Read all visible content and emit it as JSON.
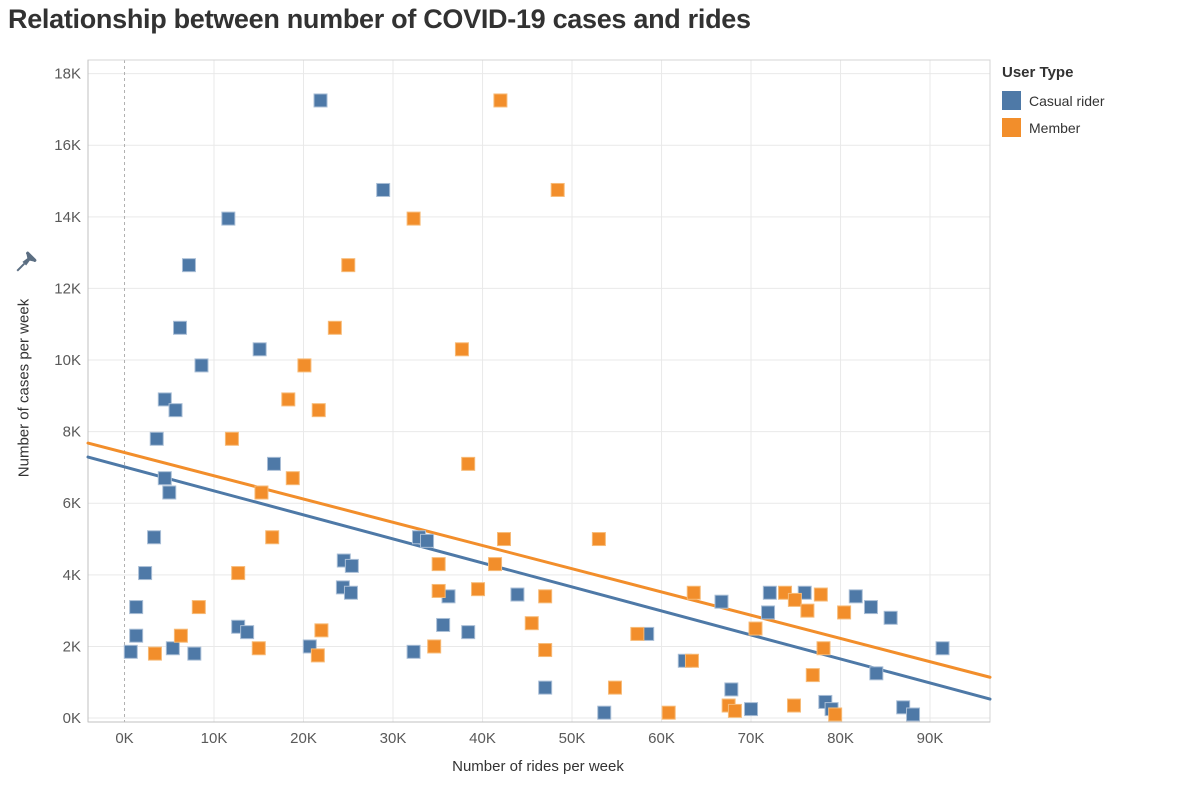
{
  "title": "Relationship between number of COVID-19 cases and rides",
  "x_axis": {
    "title": "Number of rides per week",
    "tick_labels": [
      "0K",
      "10K",
      "20K",
      "30K",
      "40K",
      "50K",
      "60K",
      "70K",
      "80K",
      "90K"
    ],
    "tick_values": [
      0,
      10,
      20,
      30,
      40,
      50,
      60,
      70,
      80,
      90
    ]
  },
  "y_axis": {
    "title": "Number of cases per week",
    "tick_labels": [
      "0K",
      "2K",
      "4K",
      "6K",
      "8K",
      "10K",
      "12K",
      "14K",
      "16K",
      "18K"
    ],
    "tick_values": [
      0,
      2,
      4,
      6,
      8,
      10,
      12,
      14,
      16,
      18
    ]
  },
  "legend": {
    "title": "User Type",
    "items": [
      {
        "label": "Casual rider",
        "color": "#4e79a7"
      },
      {
        "label": "Member",
        "color": "#f28e2b"
      }
    ]
  },
  "colors": {
    "casual": "#4e79a7",
    "member": "#f28e2b",
    "gridline": "#e9e9e9",
    "zero_line_dashed": "#b0b0b0",
    "plot_border": "#d4d4d4",
    "axis_ruler": "#c0c0c0",
    "tick_text": "#595959",
    "pin": "#5b6e82"
  },
  "chart_data": {
    "type": "scatter",
    "units": "thousands",
    "x_range": [
      -4.08,
      96.7
    ],
    "y_range": [
      -0.11,
      18.38
    ],
    "grid": true,
    "legend_position": "right",
    "title": "Relationship between number of COVID-19 cases and rides",
    "xlabel": "Number of rides per week",
    "ylabel": "Number of cases per week",
    "series": [
      {
        "name": "Casual rider",
        "color": "#4e79a7",
        "points": [
          [
            21.9,
            17.25
          ],
          [
            28.9,
            14.75
          ],
          [
            11.6,
            13.95
          ],
          [
            7.2,
            12.65
          ],
          [
            6.2,
            10.9
          ],
          [
            15.1,
            10.3
          ],
          [
            8.6,
            9.85
          ],
          [
            4.5,
            8.9
          ],
          [
            5.7,
            8.6
          ],
          [
            3.6,
            7.8
          ],
          [
            16.7,
            7.1
          ],
          [
            4.5,
            6.7
          ],
          [
            5.0,
            6.3
          ],
          [
            3.3,
            5.05
          ],
          [
            32.9,
            5.05
          ],
          [
            33.8,
            4.95
          ],
          [
            24.5,
            4.4
          ],
          [
            25.4,
            4.25
          ],
          [
            2.3,
            4.05
          ],
          [
            24.4,
            3.65
          ],
          [
            25.3,
            3.5
          ],
          [
            36.2,
            3.4
          ],
          [
            43.9,
            3.45
          ],
          [
            35.6,
            2.6
          ],
          [
            38.4,
            2.4
          ],
          [
            1.3,
            3.1
          ],
          [
            1.3,
            2.3
          ],
          [
            12.7,
            2.55
          ],
          [
            13.7,
            2.4
          ],
          [
            20.7,
            2.0
          ],
          [
            0.7,
            1.85
          ],
          [
            5.4,
            1.95
          ],
          [
            7.8,
            1.8
          ],
          [
            32.3,
            1.85
          ],
          [
            58.4,
            2.35
          ],
          [
            62.6,
            1.6
          ],
          [
            66.7,
            3.25
          ],
          [
            71.9,
            2.95
          ],
          [
            72.1,
            3.5
          ],
          [
            76.0,
            3.5
          ],
          [
            81.7,
            3.4
          ],
          [
            83.4,
            3.1
          ],
          [
            85.6,
            2.8
          ],
          [
            91.4,
            1.95
          ],
          [
            84.0,
            1.25
          ],
          [
            67.8,
            0.8
          ],
          [
            70.0,
            0.25
          ],
          [
            78.3,
            0.45
          ],
          [
            79.0,
            0.25
          ],
          [
            87.0,
            0.3
          ],
          [
            88.1,
            0.1
          ],
          [
            47.0,
            0.85
          ],
          [
            53.6,
            0.15
          ]
        ]
      },
      {
        "name": "Member",
        "color": "#f28e2b",
        "points": [
          [
            42.0,
            17.25
          ],
          [
            48.4,
            14.75
          ],
          [
            32.3,
            13.95
          ],
          [
            25.0,
            12.65
          ],
          [
            23.5,
            10.9
          ],
          [
            37.7,
            10.3
          ],
          [
            20.1,
            9.85
          ],
          [
            18.3,
            8.9
          ],
          [
            21.7,
            8.6
          ],
          [
            12.0,
            7.8
          ],
          [
            38.4,
            7.1
          ],
          [
            18.8,
            6.7
          ],
          [
            15.3,
            6.3
          ],
          [
            16.5,
            5.05
          ],
          [
            42.4,
            5.0
          ],
          [
            53.0,
            5.0
          ],
          [
            35.1,
            4.3
          ],
          [
            41.4,
            4.3
          ],
          [
            12.7,
            4.05
          ],
          [
            35.1,
            3.55
          ],
          [
            39.5,
            3.6
          ],
          [
            45.5,
            2.65
          ],
          [
            47.0,
            3.4
          ],
          [
            34.6,
            2.0
          ],
          [
            8.3,
            3.1
          ],
          [
            6.3,
            2.3
          ],
          [
            22.0,
            2.45
          ],
          [
            21.6,
            1.75
          ],
          [
            15.0,
            1.95
          ],
          [
            3.4,
            1.8
          ],
          [
            47.0,
            1.9
          ],
          [
            57.3,
            2.35
          ],
          [
            63.4,
            1.6
          ],
          [
            63.6,
            3.5
          ],
          [
            70.5,
            2.5
          ],
          [
            73.8,
            3.5
          ],
          [
            74.9,
            3.3
          ],
          [
            77.8,
            3.45
          ],
          [
            76.3,
            3.0
          ],
          [
            80.4,
            2.95
          ],
          [
            78.1,
            1.95
          ],
          [
            76.9,
            1.2
          ],
          [
            74.8,
            0.35
          ],
          [
            67.5,
            0.35
          ],
          [
            68.2,
            0.2
          ],
          [
            79.4,
            0.1
          ],
          [
            54.8,
            0.85
          ],
          [
            60.8,
            0.15
          ]
        ]
      }
    ],
    "trend_lines": [
      {
        "name": "Casual rider",
        "color": "#4e79a7",
        "x1": -4.08,
        "y1": 7.29,
        "x2": 96.7,
        "y2": 0.53
      },
      {
        "name": "Member",
        "color": "#f28e2b",
        "x1": -4.08,
        "y1": 7.68,
        "x2": 96.7,
        "y2": 1.14
      }
    ]
  }
}
